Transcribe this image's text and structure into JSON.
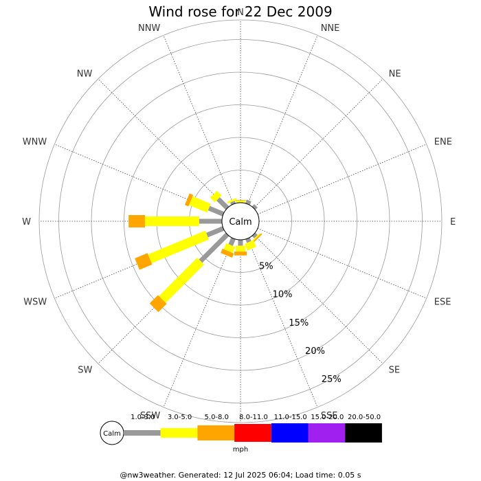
{
  "chart_data": {
    "type": "wind-rose",
    "title": "Wind rose for 22 Dec 2009",
    "calm_label": "Calm",
    "directions": [
      "N",
      "NNE",
      "NE",
      "ENE",
      "E",
      "ESE",
      "SE",
      "SSE",
      "S",
      "SSW",
      "SW",
      "WSW",
      "W",
      "WNW",
      "NW",
      "NNW"
    ],
    "rings": [
      "5%",
      "10%",
      "15%",
      "20%",
      "25%"
    ],
    "ring_values": [
      5,
      10,
      15,
      20,
      25
    ],
    "unit": "mph",
    "speed_bins": [
      {
        "label": "1.0-3.0",
        "color": "#999999"
      },
      {
        "label": "3.0-5.0",
        "color": "#ffff00"
      },
      {
        "label": "5.0-8.0",
        "color": "#ffa500"
      },
      {
        "label": "8.0-11.0",
        "color": "#ff0000"
      },
      {
        "label": "11.0-15.0",
        "color": "#0000ff"
      },
      {
        "label": "15.0-20.0",
        "color": "#a020f0"
      },
      {
        "label": "20.0-50.0",
        "color": "#000000"
      }
    ],
    "series": [
      {
        "direction": "N",
        "segments": [
          0,
          0.3,
          0.1,
          0,
          0,
          0,
          0
        ]
      },
      {
        "direction": "NNE",
        "segments": [
          0.6,
          0,
          0,
          0,
          0,
          0,
          0
        ]
      },
      {
        "direction": "NE",
        "segments": [
          0.5,
          0,
          0,
          0,
          0,
          0,
          0
        ]
      },
      {
        "direction": "ENE",
        "segments": [
          0,
          0,
          0,
          0,
          0,
          0,
          0
        ]
      },
      {
        "direction": "E",
        "segments": [
          0,
          0,
          0,
          0,
          0,
          0,
          0
        ]
      },
      {
        "direction": "ESE",
        "segments": [
          0,
          0,
          0,
          0,
          0,
          0,
          0
        ]
      },
      {
        "direction": "SE",
        "segments": [
          0.5,
          0.2,
          0.2,
          0,
          0,
          0,
          0
        ]
      },
      {
        "direction": "SSE",
        "segments": [
          0.6,
          1.1,
          0,
          0,
          0,
          0,
          0
        ]
      },
      {
        "direction": "S",
        "segments": [
          0.9,
          0.9,
          0.6,
          0,
          0,
          0,
          0
        ]
      },
      {
        "direction": "SSW",
        "segments": [
          1.1,
          1.0,
          0.7,
          0,
          0,
          0,
          0
        ]
      },
      {
        "direction": "SW",
        "segments": [
          5.8,
          8.3,
          1.8,
          0,
          0,
          0,
          0
        ]
      },
      {
        "direction": "WSW",
        "segments": [
          2.7,
          9.5,
          2.1,
          0,
          0,
          0,
          0
        ]
      },
      {
        "direction": "W",
        "segments": [
          3.5,
          8.3,
          2.5,
          0,
          0,
          0,
          0
        ]
      },
      {
        "direction": "WNW",
        "segments": [
          2.4,
          3.0,
          0.6,
          0,
          0,
          0,
          0
        ]
      },
      {
        "direction": "NW",
        "segments": [
          2.0,
          1.0,
          0,
          0,
          0,
          0,
          0
        ]
      },
      {
        "direction": "NNW",
        "segments": [
          0.4,
          0.3,
          0,
          0,
          0,
          0,
          0
        ]
      }
    ]
  },
  "footer": "@nw3weather. Generated: 12 Jul 2025 06:04; Load time: 0.05 s"
}
